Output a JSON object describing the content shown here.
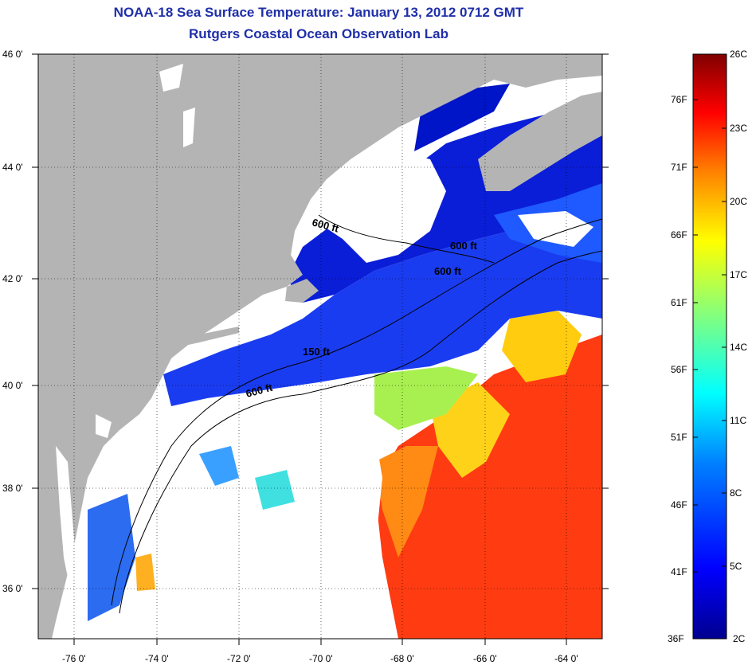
{
  "title": {
    "line1": "NOAA-18 Sea Surface Temperature:  January 13, 2012 0712 GMT",
    "line2": "Rutgers Coastal Ocean Observation Lab"
  },
  "map": {
    "lat_labels": [
      "46 0'",
      "44 0'",
      "42 0'",
      "40 0'",
      "38 0'",
      "36 0'"
    ],
    "lon_labels": [
      "-76 0'",
      "-74 0'",
      "-72 0'",
      "-70 0'",
      "-68 0'",
      "-66 0'",
      "-64 0'"
    ],
    "lat_range": [
      35,
      46
    ],
    "lon_range": [
      -77,
      -63
    ],
    "isobath_labels": [
      "600 ft",
      "600 ft",
      "600 ft",
      "150 ft",
      "600 ft"
    ],
    "colors": {
      "land": "#b4b4b4",
      "cloud": "#ffffff",
      "isobath": "#000000"
    }
  },
  "colorbar": {
    "fahrenheit_labels": [
      "76F",
      "71F",
      "66F",
      "61F",
      "56F",
      "51F",
      "46F",
      "41F",
      "36F"
    ],
    "celsius_labels": [
      "26C",
      "23C",
      "20C",
      "17C",
      "14C",
      "11C",
      "8C",
      "5C",
      "2C"
    ],
    "range_c": [
      2,
      26
    ],
    "colors": [
      "#00008f",
      "#0000ff",
      "#0080ff",
      "#00ffff",
      "#80ff80",
      "#ffff00",
      "#ff8000",
      "#ff0000",
      "#800000"
    ]
  }
}
